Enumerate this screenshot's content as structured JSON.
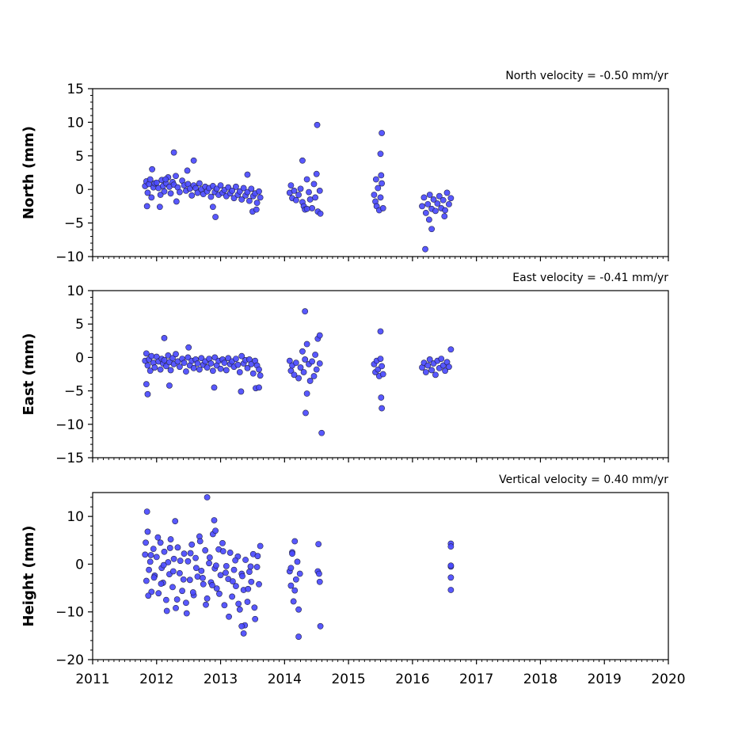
{
  "chart_data": [
    {
      "type": "scatter",
      "title": "North velocity = -0.50 mm/yr",
      "ylabel": "North (mm)",
      "xlabel": "",
      "xlim": [
        2011,
        2020
      ],
      "ylim": [
        -10,
        15
      ],
      "yticks": [
        15,
        10,
        5,
        0,
        -5,
        -10
      ],
      "xticks": [
        2011,
        2012,
        2013,
        2014,
        2015,
        2016,
        2017,
        2018,
        2019,
        2020
      ],
      "xtick_labels": [],
      "marker_color": "#4a4aff",
      "series": [
        {
          "x": [
            2011.82,
            2011.84,
            2011.86,
            2011.88,
            2011.9,
            2011.92,
            2011.95,
            2011.97,
            2012.0,
            2012.03,
            2012.06,
            2012.08,
            2012.1,
            2012.12,
            2012.15,
            2012.18,
            2012.2,
            2012.22,
            2012.25,
            2012.27,
            2012.3,
            2012.33,
            2012.36,
            2012.4,
            2012.43,
            2012.46,
            2012.49,
            2012.52,
            2012.55,
            2012.58,
            2012.61,
            2012.64,
            2012.67,
            2012.7,
            2012.73,
            2012.76,
            2012.79,
            2012.82,
            2012.85,
            2012.88,
            2012.91,
            2012.94,
            2012.97,
            2013.0,
            2013.03,
            2013.06,
            2013.09,
            2013.12,
            2013.15,
            2013.18,
            2013.21,
            2013.24,
            2013.27,
            2013.3,
            2013.33,
            2013.36,
            2013.39,
            2013.42,
            2013.45,
            2013.48,
            2013.51,
            2013.54,
            2013.57,
            2013.6,
            2013.62,
            2011.85,
            2011.93,
            2012.05,
            2012.14,
            2012.27,
            2012.31,
            2012.48,
            2012.58,
            2012.88,
            2012.92,
            2013.42,
            2013.5,
            2013.56,
            2014.08,
            2014.1,
            2014.12,
            2014.15,
            2014.18,
            2014.22,
            2014.25,
            2014.28,
            2014.3,
            2014.32,
            2014.35,
            2014.38,
            2014.4,
            2014.43,
            2014.46,
            2014.48,
            2014.5,
            2014.52,
            2014.55,
            2014.28,
            2014.35,
            2014.51,
            2014.56,
            2015.4,
            2015.42,
            2015.44,
            2015.46,
            2015.48,
            2015.5,
            2015.52,
            2015.54,
            2015.43,
            2015.5,
            2015.52,
            2015.51,
            2016.15,
            2016.18,
            2016.21,
            2016.24,
            2016.27,
            2016.3,
            2016.33,
            2016.36,
            2016.39,
            2016.42,
            2016.45,
            2016.48,
            2016.51,
            2016.54,
            2016.57,
            2016.6,
            2016.2,
            2016.26,
            2016.3,
            2016.5
          ],
          "y": [
            0.5,
            1.2,
            -0.5,
            0.8,
            1.5,
            -1.2,
            0.3,
            0.9,
            1.0,
            0.2,
            -0.8,
            1.4,
            0.5,
            -0.3,
            0.9,
            1.8,
            0.4,
            -0.6,
            1.1,
            0.7,
            2.0,
            0.3,
            -0.4,
            1.3,
            0.6,
            -0.2,
            0.8,
            0.1,
            -0.9,
            0.6,
            0.2,
            -0.5,
            0.9,
            0.0,
            -0.7,
            0.4,
            -0.3,
            0.2,
            -1.1,
            0.5,
            -0.4,
            0.1,
            -0.8,
            0.6,
            -0.5,
            -0.1,
            -1.0,
            0.3,
            -0.6,
            -0.2,
            -1.3,
            0.4,
            -0.8,
            -0.3,
            -1.5,
            0.2,
            -0.9,
            -0.4,
            -1.7,
            0.1,
            -1.0,
            -0.6,
            -2.0,
            -0.3,
            -1.2,
            -2.5,
            3.0,
            -2.6,
            1.5,
            5.5,
            -1.8,
            2.8,
            4.3,
            -2.6,
            -4.1,
            2.2,
            -3.3,
            -3.0,
            -0.5,
            0.6,
            -1.3,
            -0.2,
            -1.6,
            -0.8,
            0.1,
            -1.9,
            -2.5,
            -3.0,
            1.5,
            -0.4,
            -1.5,
            -2.8,
            0.8,
            -1.2,
            2.3,
            -3.3,
            -0.2,
            4.3,
            -2.9,
            9.6,
            -3.6,
            -0.8,
            -1.8,
            -2.5,
            0.2,
            -3.1,
            -1.2,
            0.9,
            -2.8,
            1.5,
            5.3,
            8.4,
            2.1,
            -2.5,
            -1.2,
            -3.5,
            -2.2,
            -0.8,
            -2.9,
            -1.5,
            -3.2,
            -2.1,
            -1.0,
            -2.8,
            -1.6,
            -3.1,
            -0.5,
            -2.2,
            -1.3,
            -8.9,
            -4.5,
            -5.9,
            -4.0
          ]
        }
      ]
    },
    {
      "type": "scatter",
      "title": "East velocity = -0.41 mm/yr",
      "ylabel": "East (mm)",
      "xlabel": "",
      "xlim": [
        2011,
        2020
      ],
      "ylim": [
        -15,
        10
      ],
      "yticks": [
        10,
        5,
        0,
        -5,
        -10,
        -15
      ],
      "xticks": [
        2011,
        2012,
        2013,
        2014,
        2015,
        2016,
        2017,
        2018,
        2019,
        2020
      ],
      "xtick_labels": [],
      "marker_color": "#4a4aff",
      "series": [
        {
          "x": [
            2011.82,
            2011.84,
            2011.86,
            2011.88,
            2011.9,
            2011.92,
            2011.95,
            2011.97,
            2012.0,
            2012.03,
            2012.06,
            2012.08,
            2012.1,
            2012.12,
            2012.15,
            2012.18,
            2012.2,
            2012.22,
            2012.25,
            2012.27,
            2012.3,
            2012.33,
            2012.36,
            2012.4,
            2012.43,
            2012.46,
            2012.49,
            2012.52,
            2012.55,
            2012.58,
            2012.61,
            2012.64,
            2012.67,
            2012.7,
            2012.73,
            2012.76,
            2012.79,
            2012.82,
            2012.85,
            2012.88,
            2012.91,
            2012.94,
            2012.97,
            2013.0,
            2013.03,
            2013.06,
            2013.09,
            2013.12,
            2013.15,
            2013.18,
            2013.21,
            2013.24,
            2013.27,
            2013.3,
            2013.33,
            2013.36,
            2013.39,
            2013.42,
            2013.45,
            2013.48,
            2013.51,
            2013.54,
            2013.57,
            2013.6,
            2013.62,
            2011.84,
            2011.86,
            2012.12,
            2012.2,
            2012.5,
            2012.9,
            2013.32,
            2013.55,
            2013.6,
            2014.08,
            2014.1,
            2014.12,
            2014.15,
            2014.18,
            2014.22,
            2014.25,
            2014.28,
            2014.3,
            2014.32,
            2014.35,
            2014.38,
            2014.4,
            2014.43,
            2014.46,
            2014.48,
            2014.5,
            2014.52,
            2014.55,
            2014.32,
            2014.33,
            2014.35,
            2014.55,
            2014.58,
            2015.4,
            2015.42,
            2015.44,
            2015.46,
            2015.48,
            2015.5,
            2015.52,
            2015.54,
            2015.5,
            2015.51,
            2015.52,
            2016.15,
            2016.18,
            2016.21,
            2016.24,
            2016.27,
            2016.3,
            2016.33,
            2016.36,
            2016.39,
            2016.42,
            2016.45,
            2016.48,
            2016.51,
            2016.54,
            2016.57,
            2016.6
          ],
          "y": [
            -0.5,
            0.6,
            -1.2,
            -0.3,
            -2.0,
            0.2,
            -0.8,
            -1.5,
            0.1,
            -0.6,
            -1.8,
            -0.2,
            -0.9,
            -0.4,
            -1.3,
            0.3,
            -0.7,
            -1.9,
            -0.1,
            -1.0,
            0.5,
            -0.6,
            -1.4,
            -0.2,
            -0.8,
            -2.1,
            0.0,
            -1.2,
            -0.5,
            -1.6,
            -0.3,
            -0.9,
            -1.8,
            -0.1,
            -1.1,
            -0.6,
            -1.5,
            -0.2,
            -0.9,
            -2.0,
            0.0,
            -1.2,
            -0.5,
            -1.7,
            -0.3,
            -0.8,
            -1.9,
            -0.1,
            -1.0,
            -0.6,
            -1.4,
            -0.2,
            -1.1,
            -2.2,
            0.2,
            -0.9,
            -0.4,
            -1.6,
            -0.3,
            -1.0,
            -2.4,
            -0.5,
            -1.2,
            -1.8,
            -2.7,
            -4.0,
            -5.5,
            2.9,
            -4.2,
            1.5,
            -4.5,
            -5.1,
            -4.6,
            -4.5,
            -0.5,
            -2.0,
            -1.2,
            -2.6,
            -0.8,
            -3.1,
            -1.5,
            0.9,
            -2.2,
            -0.3,
            2.0,
            -1.0,
            -3.5,
            -0.6,
            -2.8,
            0.4,
            -1.8,
            2.8,
            -0.9,
            6.9,
            -8.3,
            -5.4,
            3.3,
            -11.3,
            -1.0,
            -2.2,
            -0.5,
            -1.8,
            -2.8,
            -0.2,
            -1.3,
            -2.5,
            3.9,
            -6.0,
            -7.6,
            -1.5,
            -0.8,
            -2.2,
            -1.2,
            -0.3,
            -1.9,
            -0.9,
            -2.6,
            -0.5,
            -1.6,
            -0.2,
            -1.2,
            -2.0,
            -0.7,
            -1.4,
            1.2
          ]
        }
      ]
    },
    {
      "type": "scatter",
      "title": "Vertical velocity = 0.40 mm/yr",
      "ylabel": "Height (mm)",
      "xlabel": "",
      "xlim": [
        2011,
        2020
      ],
      "ylim": [
        -20,
        15
      ],
      "yticks": [
        10,
        0,
        -10,
        -20
      ],
      "xticks": [
        2011,
        2012,
        2013,
        2014,
        2015,
        2016,
        2017,
        2018,
        2019,
        2020
      ],
      "xtick_labels": [
        "2011",
        "2012",
        "2013",
        "2014",
        "2015",
        "2016",
        "2017",
        "2018",
        "2019",
        "2020"
      ],
      "marker_color": "#4a4aff",
      "series": [
        {
          "x": [
            2011.82,
            2011.84,
            2011.86,
            2011.88,
            2011.9,
            2011.92,
            2011.95,
            2011.97,
            2012.0,
            2012.03,
            2012.06,
            2012.08,
            2012.1,
            2012.12,
            2012.15,
            2012.18,
            2012.2,
            2012.22,
            2012.25,
            2012.27,
            2012.3,
            2012.33,
            2012.36,
            2012.4,
            2012.43,
            2012.46,
            2012.49,
            2012.52,
            2012.55,
            2012.58,
            2012.61,
            2012.64,
            2012.67,
            2012.7,
            2012.73,
            2012.76,
            2012.79,
            2012.82,
            2012.85,
            2012.88,
            2012.91,
            2012.94,
            2012.97,
            2013.0,
            2013.03,
            2013.06,
            2013.09,
            2013.12,
            2013.15,
            2013.18,
            2013.21,
            2013.24,
            2013.27,
            2013.3,
            2013.33,
            2013.36,
            2013.39,
            2013.42,
            2013.45,
            2013.48,
            2013.51,
            2013.54,
            2013.57,
            2013.6,
            2013.62,
            2011.83,
            2011.87,
            2011.91,
            2011.96,
            2012.02,
            2012.07,
            2012.11,
            2012.16,
            2012.21,
            2012.26,
            2012.32,
            2012.37,
            2012.42,
            2012.47,
            2012.53,
            2012.57,
            2012.62,
            2012.68,
            2012.72,
            2012.77,
            2012.83,
            2012.87,
            2012.93,
            2012.98,
            2013.04,
            2013.08,
            2013.13,
            2013.19,
            2013.23,
            2013.28,
            2013.34,
            2013.38,
            2013.43,
            2013.47,
            2013.53,
            2013.58,
            2011.85,
            2012.79,
            2012.9,
            2012.92,
            2012.29,
            2013.33,
            2013.36,
            2014.08,
            2014.1,
            2014.12,
            2014.14,
            2014.16,
            2014.18,
            2014.2,
            2014.22,
            2014.24,
            2014.1,
            2014.12,
            2014.16,
            2014.22,
            2014.52,
            2014.53,
            2014.54,
            2014.55,
            2014.56,
            2016.6,
            2016.6,
            2016.6,
            2016.6,
            2016.6,
            2016.6
          ],
          "y": [
            2.0,
            -3.5,
            6.8,
            -1.2,
            0.5,
            -5.8,
            3.2,
            -2.4,
            1.5,
            -6.1,
            4.5,
            -0.8,
            -3.9,
            2.6,
            -7.5,
            0.4,
            -2.1,
            5.2,
            -4.8,
            1.1,
            -9.2,
            3.5,
            -1.9,
            -5.6,
            2.2,
            -8.1,
            0.6,
            -3.3,
            4.1,
            -6.5,
            1.3,
            -2.6,
            5.8,
            -1.4,
            -4.2,
            2.9,
            -7.2,
            0.2,
            -3.8,
            6.3,
            -0.9,
            -5.1,
            3.1,
            -2.3,
            4.4,
            -8.6,
            -0.4,
            -3.1,
            2.4,
            -6.8,
            -1.2,
            -4.6,
            1.6,
            -9.5,
            -2.0,
            -5.4,
            0.9,
            -7.9,
            -1.6,
            -3.7,
            2.1,
            -11.5,
            -0.6,
            -4.2,
            3.8,
            4.5,
            -6.6,
            1.9,
            -2.8,
            5.6,
            -4.1,
            -0.2,
            -9.8,
            3.4,
            -1.5,
            -7.4,
            0.7,
            -3.2,
            -10.3,
            2.3,
            -5.9,
            -0.8,
            4.8,
            -2.9,
            -8.5,
            1.4,
            -4.4,
            -0.3,
            -6.2,
            2.7,
            -1.8,
            -11.0,
            -3.6,
            0.8,
            -8.3,
            -2.5,
            -12.8,
            -5.2,
            -0.5,
            -9.1,
            1.7,
            11.0,
            14.0,
            9.2,
            7.0,
            9.0,
            -13.0,
            -14.5,
            -1.5,
            -4.5,
            2.5,
            -7.8,
            4.8,
            -3.2,
            0.5,
            -9.5,
            -2.0,
            -0.8,
            2.2,
            -5.5,
            -15.2,
            -1.5,
            4.2,
            -2.0,
            -3.7,
            -13.0,
            4.3,
            3.7,
            -0.5,
            -0.3,
            -2.8,
            -5.4
          ]
        }
      ]
    }
  ]
}
